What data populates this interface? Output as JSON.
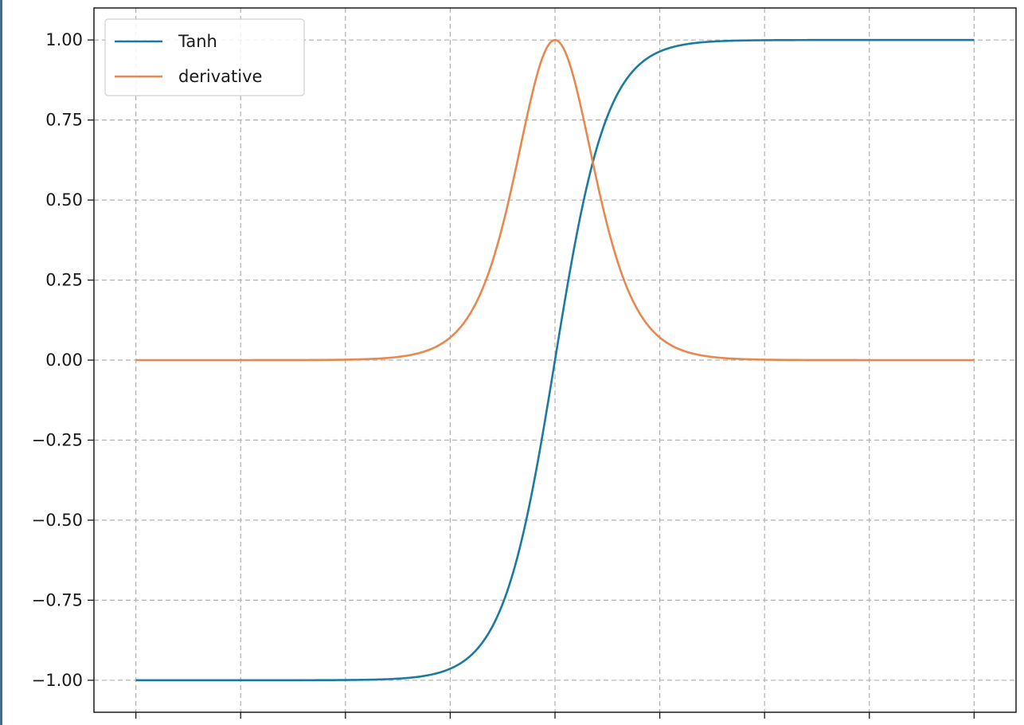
{
  "chart_data": {
    "type": "line",
    "title": "",
    "xlabel": "",
    "ylabel": "",
    "x": [
      -8,
      -6,
      -4,
      -2,
      0,
      2,
      4,
      6,
      8
    ],
    "x_tick_labels": [
      "",
      "",
      "",
      "",
      "",
      "",
      "",
      "",
      ""
    ],
    "xlim": [
      -8.8,
      8.8
    ],
    "ylim": [
      -1.1,
      1.1
    ],
    "yticks": [
      1.0,
      0.75,
      0.5,
      0.25,
      0.0,
      -0.25,
      -0.5,
      -0.75,
      -1.0
    ],
    "ytick_labels": [
      "1.00",
      "0.75",
      "0.50",
      "0.25",
      "0.00",
      "−0.25",
      "−0.50",
      "−0.75",
      "−1.00"
    ],
    "grid": true,
    "legend_position": "top-left",
    "series": [
      {
        "name": "Tanh",
        "color": "#1a7aa1",
        "x": [
          -8,
          -6,
          -4,
          -3,
          -2,
          -1.5,
          -1,
          -0.5,
          0,
          0.5,
          1,
          1.5,
          2,
          3,
          4,
          6,
          8
        ],
        "y": [
          -1.0,
          -1.0,
          -0.9993,
          -0.995,
          -0.964,
          -0.905,
          -0.762,
          -0.462,
          0.0,
          0.462,
          0.762,
          0.905,
          0.964,
          0.995,
          0.9993,
          1.0,
          1.0
        ]
      },
      {
        "name": "derivative",
        "color": "#e8884e",
        "x": [
          -8,
          -6,
          -4,
          -3,
          -2,
          -1.5,
          -1,
          -0.5,
          0,
          0.5,
          1,
          1.5,
          2,
          3,
          4,
          6,
          8
        ],
        "y": [
          0.0,
          0.0,
          0.0013,
          0.0099,
          0.0707,
          0.1807,
          0.42,
          0.7864,
          1.0,
          0.7864,
          0.42,
          0.1807,
          0.0707,
          0.0099,
          0.0013,
          0.0,
          0.0
        ]
      }
    ]
  }
}
